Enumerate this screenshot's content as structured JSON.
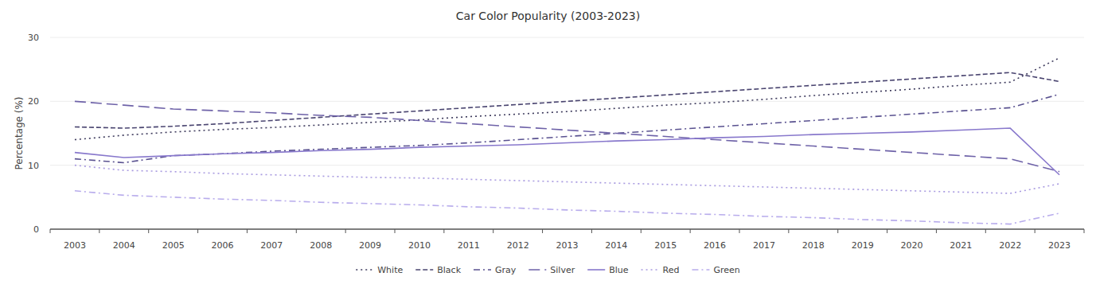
{
  "chart_data": {
    "type": "line",
    "title": "Car Color Popularity (2003-2023)",
    "y_label": "Percentage (%)",
    "categories": [
      "2003",
      "2004",
      "2005",
      "2006",
      "2007",
      "2008",
      "2009",
      "2010",
      "2011",
      "2012",
      "2013",
      "2014",
      "2015",
      "2016",
      "2017",
      "2018",
      "2019",
      "2020",
      "2021",
      "2022",
      "2023"
    ],
    "series": [
      {
        "name": "White",
        "color": "#3d3a5c",
        "line_style": "dotted",
        "values": [
          14,
          14.7,
          15.2,
          15.6,
          15.9,
          16.3,
          16.7,
          17.1,
          17.6,
          18.0,
          18.4,
          18.9,
          19.4,
          19.8,
          20.3,
          20.9,
          21.4,
          21.9,
          22.5,
          23.0,
          26.8
        ]
      },
      {
        "name": "Black",
        "color": "#4a4570",
        "line_style": "dashed",
        "values": [
          16,
          15.8,
          16.1,
          16.5,
          17.0,
          17.5,
          18.0,
          18.5,
          19.0,
          19.5,
          20.0,
          20.5,
          21.0,
          21.5,
          22.0,
          22.5,
          23.0,
          23.5,
          24.0,
          24.5,
          23.1
        ]
      },
      {
        "name": "Gray",
        "color": "#5a5290",
        "line_style": "dashdot",
        "values": [
          11,
          10.4,
          11.5,
          11.8,
          12.2,
          12.5,
          12.8,
          13.1,
          13.5,
          14.0,
          14.5,
          15.0,
          15.5,
          16.0,
          16.5,
          17.0,
          17.5,
          18.0,
          18.5,
          19.0,
          21.1
        ]
      },
      {
        "name": "Silver",
        "color": "#6e62a8",
        "line_style": "longdash",
        "values": [
          20,
          19.4,
          18.8,
          18.5,
          18.2,
          17.8,
          17.5,
          17.0,
          16.5,
          16.0,
          15.5,
          15.0,
          14.5,
          14.0,
          13.5,
          13.0,
          12.5,
          12.0,
          11.5,
          11.0,
          9.0
        ]
      },
      {
        "name": "Blue",
        "color": "#8878cc",
        "line_style": "solid",
        "values": [
          12,
          11.2,
          11.5,
          11.8,
          12.0,
          12.3,
          12.5,
          12.8,
          13.0,
          13.2,
          13.5,
          13.8,
          14.0,
          14.3,
          14.5,
          14.8,
          15.0,
          15.2,
          15.5,
          15.8,
          8.5
        ]
      },
      {
        "name": "Red",
        "color": "#a89ae0",
        "line_style": "dotted",
        "values": [
          10,
          9.2,
          9.0,
          8.7,
          8.5,
          8.3,
          8.1,
          8.0,
          7.8,
          7.6,
          7.4,
          7.2,
          7.0,
          6.8,
          6.6,
          6.4,
          6.2,
          6.0,
          5.8,
          5.6,
          7.1
        ]
      },
      {
        "name": "Green",
        "color": "#b8acec",
        "line_style": "dashdot",
        "values": [
          6,
          5.3,
          5.0,
          4.7,
          4.5,
          4.2,
          4.0,
          3.8,
          3.5,
          3.3,
          3.0,
          2.8,
          2.5,
          2.3,
          2.0,
          1.8,
          1.5,
          1.3,
          1.0,
          0.8,
          2.5
        ]
      }
    ],
    "ylim": [
      0,
      30
    ],
    "yticks": [
      0,
      10,
      20,
      30
    ],
    "grid": true,
    "legend": "bottom"
  }
}
